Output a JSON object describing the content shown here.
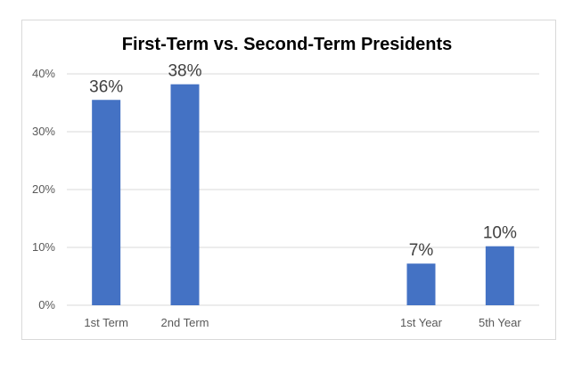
{
  "chart_data": {
    "type": "bar",
    "title": "First-Term vs. Second-Term Presidents",
    "categories": [
      "1st Term",
      "2nd Term",
      "",
      "",
      "1st Year",
      "5th Year"
    ],
    "values": [
      35.5,
      38.2,
      null,
      null,
      7.2,
      10.2
    ],
    "data_labels": [
      "36%",
      "38%",
      "",
      "",
      "7%",
      "10%"
    ],
    "ylim": [
      0,
      40
    ],
    "y_ticks": [
      0,
      10,
      20,
      30,
      40
    ],
    "y_tick_labels": [
      "0%",
      "10%",
      "20%",
      "30%",
      "40%"
    ],
    "xlabel": "",
    "ylabel": "",
    "grid": true,
    "legend": "none",
    "bar_color": "#4472c4",
    "grid_color": "#d9d9d9"
  }
}
